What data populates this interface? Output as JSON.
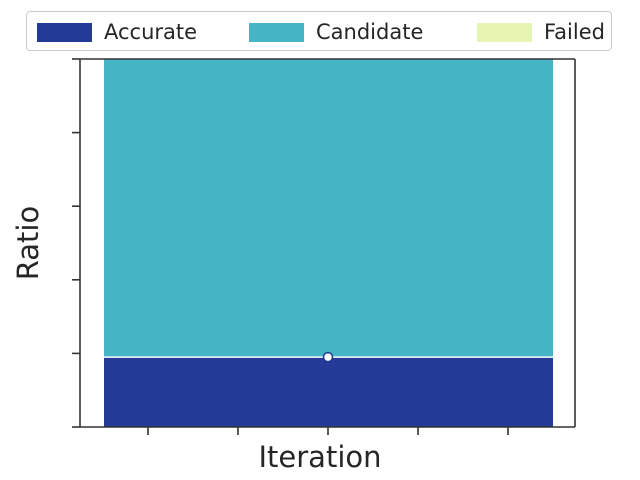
{
  "chart_data": {
    "type": "bar",
    "stacked": true,
    "normalized": true,
    "xlabel": "Iteration",
    "ylabel": "Ratio",
    "ylim": [
      0,
      1
    ],
    "x_tick_count": 5,
    "y_tick_count": 6,
    "tick_labels_visible": false,
    "grid": false,
    "legend_position": "top",
    "series": [
      {
        "name": "Accurate",
        "value": 0.19,
        "color": "#233a97"
      },
      {
        "name": "Candidate",
        "value": 0.81,
        "color": "#45b5c6"
      },
      {
        "name": "Failed",
        "value": 0.0,
        "color": "#e7f5b3"
      }
    ],
    "marker": {
      "y": 0.19,
      "fill": "#ffffff",
      "stroke": "#233a97"
    }
  }
}
